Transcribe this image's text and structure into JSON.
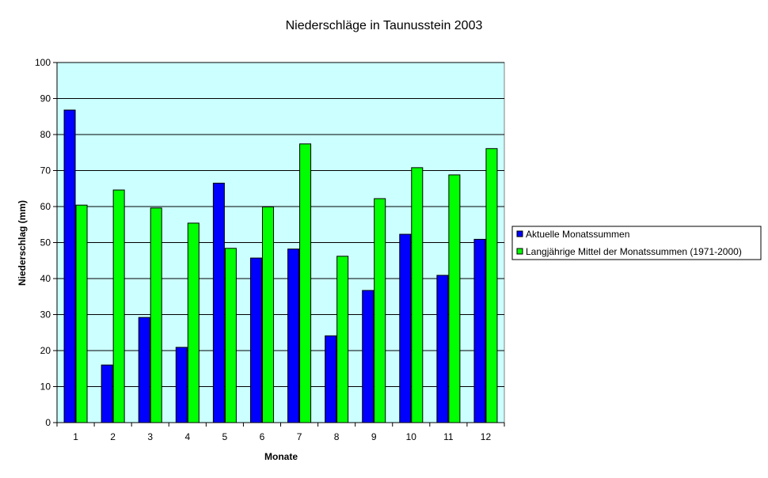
{
  "chart_data": {
    "type": "bar",
    "title": "Niederschläge in Taunusstein 2003",
    "xlabel": "Monate",
    "ylabel": "Niederschlag (mm)",
    "categories": [
      "1",
      "2",
      "3",
      "4",
      "5",
      "6",
      "7",
      "8",
      "9",
      "10",
      "11",
      "12"
    ],
    "ylim": [
      0,
      100
    ],
    "yticks": [
      0,
      10,
      20,
      30,
      40,
      50,
      60,
      70,
      80,
      90,
      100
    ],
    "grid": true,
    "legend_position": "right",
    "plot_background": "#ccffff",
    "series": [
      {
        "name": "Aktuelle Monatssummen",
        "color": "#0000ff",
        "values": [
          86.8,
          16.0,
          29.2,
          20.9,
          66.5,
          45.7,
          48.2,
          24.1,
          36.7,
          52.3,
          40.9,
          50.9
        ]
      },
      {
        "name": "Langjährige Mittel der Monatssummen (1971-2000)",
        "color": "#00ff00",
        "values": [
          60.4,
          64.6,
          59.6,
          55.4,
          48.4,
          59.9,
          77.4,
          46.2,
          62.2,
          70.8,
          68.8,
          76.1
        ]
      }
    ]
  }
}
